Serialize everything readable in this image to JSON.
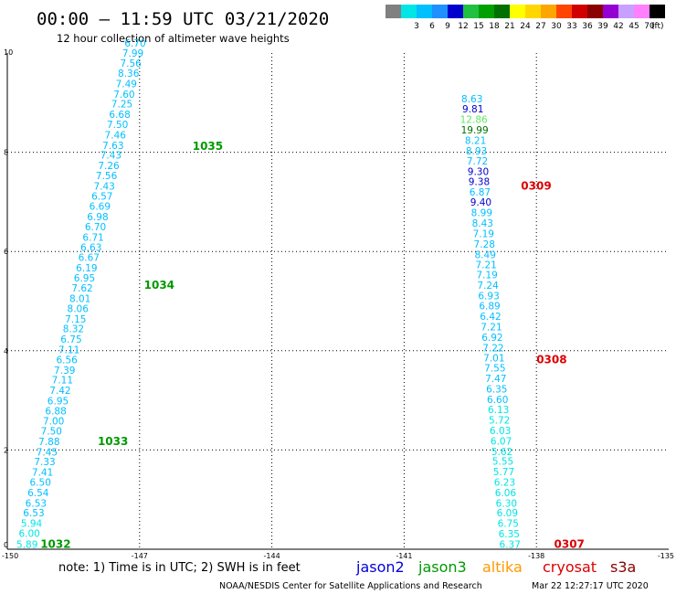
{
  "header": {
    "title": "00:00 – 11:59 UTC 03/21/2020",
    "subtitle": "12 hour collection of altimeter wave heights"
  },
  "colorbar": {
    "unit_label": "(ft)",
    "bins": [
      {
        "label": "",
        "color": "#808080"
      },
      {
        "label": "3",
        "color": "#00e5e5"
      },
      {
        "label": "6",
        "color": "#00bfff"
      },
      {
        "label": "9",
        "color": "#1e90ff"
      },
      {
        "label": "12",
        "color": "#0000cd"
      },
      {
        "label": "15",
        "color": "#20c040"
      },
      {
        "label": "18",
        "color": "#00a000"
      },
      {
        "label": "21",
        "color": "#007000"
      },
      {
        "label": "24",
        "color": "#ffff00"
      },
      {
        "label": "27",
        "color": "#ffd700"
      },
      {
        "label": "30",
        "color": "#ffa500"
      },
      {
        "label": "33",
        "color": "#ff4500"
      },
      {
        "label": "36",
        "color": "#d00000"
      },
      {
        "label": "39",
        "color": "#8b0000"
      },
      {
        "label": "42",
        "color": "#9400d3"
      },
      {
        "label": "45",
        "color": "#c8a0ff"
      },
      {
        "label": "70",
        "color": "#ff80ff"
      },
      {
        "label": "",
        "color": "#000000"
      }
    ]
  },
  "footer": {
    "note": "note:  1) Time is in UTC;  2) SWH is in feet",
    "credit": "NOAA/NESDIS Center for Satellite Applications and Research",
    "timestamp": "Mar 22 12:27:17 UTC 2020"
  },
  "legend": [
    {
      "name": "jason2",
      "color": "#0000dd"
    },
    {
      "name": "jason3",
      "color": "#009900"
    },
    {
      "name": "altika",
      "color": "#ff9900"
    },
    {
      "name": "cryosat",
      "color": "#dd0000"
    },
    {
      "name": "s3a",
      "color": "#880000"
    }
  ],
  "chart_data": {
    "type": "scatter",
    "xlim": [
      -150,
      -135
    ],
    "ylim": [
      0,
      10
    ],
    "xticks": [
      -150,
      -147,
      -144,
      -141,
      -138,
      -135
    ],
    "xtick_labels": [
      "-150",
      "-147",
      "-144",
      "-141",
      "-138",
      "-135"
    ],
    "yticks": [
      0,
      2,
      4,
      6,
      8,
      10
    ],
    "ytick_labels": [
      "0",
      "2",
      "4",
      "6",
      "8",
      "10"
    ],
    "grid": true,
    "series": [
      {
        "satellite": "jason3",
        "color": "#009900",
        "pass_labels": [
          {
            "text": "1032",
            "x": -149.25,
            "y": 0.03
          },
          {
            "text": "1033",
            "x": -147.95,
            "y": 2.1
          },
          {
            "text": "1034",
            "x": -146.9,
            "y": 5.25
          },
          {
            "text": "1035",
            "x": -145.8,
            "y": 8.05
          }
        ],
        "points": [
          {
            "x": -149.55,
            "y": 0.03,
            "v": "5.89",
            "c": "#00e5e5"
          },
          {
            "x": -149.5,
            "y": 0.25,
            "v": "6.00",
            "c": "#00e5e5"
          },
          {
            "x": -149.45,
            "y": 0.45,
            "v": "5.94",
            "c": "#00e5e5"
          },
          {
            "x": -149.4,
            "y": 0.66,
            "v": "6.53",
            "c": "#00bfff"
          },
          {
            "x": -149.35,
            "y": 0.86,
            "v": "6.53",
            "c": "#00bfff"
          },
          {
            "x": -149.3,
            "y": 1.07,
            "v": "6.54",
            "c": "#00bfff"
          },
          {
            "x": -149.25,
            "y": 1.28,
            "v": "6.50",
            "c": "#00bfff"
          },
          {
            "x": -149.2,
            "y": 1.48,
            "v": "7.41",
            "c": "#00bfff"
          },
          {
            "x": -149.15,
            "y": 1.69,
            "v": "7.33",
            "c": "#00bfff"
          },
          {
            "x": -149.1,
            "y": 1.89,
            "v": "7.45",
            "c": "#00bfff"
          },
          {
            "x": -149.05,
            "y": 2.1,
            "v": "7.88",
            "c": "#00bfff"
          },
          {
            "x": -149.0,
            "y": 2.31,
            "v": "7.50",
            "c": "#00bfff"
          },
          {
            "x": -148.95,
            "y": 2.51,
            "v": "7.00",
            "c": "#00bfff"
          },
          {
            "x": -148.9,
            "y": 2.72,
            "v": "6.88",
            "c": "#00bfff"
          },
          {
            "x": -148.85,
            "y": 2.92,
            "v": "6.95",
            "c": "#00bfff"
          },
          {
            "x": -148.8,
            "y": 3.13,
            "v": "7.42",
            "c": "#00bfff"
          },
          {
            "x": -148.75,
            "y": 3.34,
            "v": "7.11",
            "c": "#00bfff"
          },
          {
            "x": -148.7,
            "y": 3.54,
            "v": "7.39",
            "c": "#00bfff"
          },
          {
            "x": -148.65,
            "y": 3.75,
            "v": "6.56",
            "c": "#00bfff"
          },
          {
            "x": -148.6,
            "y": 3.95,
            "v": "7.11",
            "c": "#00bfff"
          },
          {
            "x": -148.55,
            "y": 4.16,
            "v": "6.75",
            "c": "#00bfff"
          },
          {
            "x": -148.5,
            "y": 4.37,
            "v": "8.32",
            "c": "#00bfff"
          },
          {
            "x": -148.45,
            "y": 4.57,
            "v": "7.15",
            "c": "#00bfff"
          },
          {
            "x": -148.4,
            "y": 4.78,
            "v": "8.06",
            "c": "#00bfff"
          },
          {
            "x": -148.35,
            "y": 4.98,
            "v": "8.01",
            "c": "#00bfff"
          },
          {
            "x": -148.3,
            "y": 5.19,
            "v": "7.62",
            "c": "#00bfff"
          },
          {
            "x": -148.25,
            "y": 5.4,
            "v": "6.95",
            "c": "#00bfff"
          },
          {
            "x": -148.2,
            "y": 5.6,
            "v": "6.19",
            "c": "#00bfff"
          },
          {
            "x": -148.15,
            "y": 5.81,
            "v": "6.67",
            "c": "#00bfff"
          },
          {
            "x": -148.1,
            "y": 6.01,
            "v": "6.63",
            "c": "#00bfff"
          },
          {
            "x": -148.05,
            "y": 6.22,
            "v": "6.71",
            "c": "#00bfff"
          },
          {
            "x": -148.0,
            "y": 6.43,
            "v": "6.70",
            "c": "#00bfff"
          },
          {
            "x": -147.95,
            "y": 6.63,
            "v": "6.98",
            "c": "#00bfff"
          },
          {
            "x": -147.9,
            "y": 6.84,
            "v": "6.69",
            "c": "#00bfff"
          },
          {
            "x": -147.85,
            "y": 7.04,
            "v": "6.57",
            "c": "#00bfff"
          },
          {
            "x": -147.8,
            "y": 7.25,
            "v": "7.43",
            "c": "#00bfff"
          },
          {
            "x": -147.75,
            "y": 7.46,
            "v": "7.56",
            "c": "#00bfff"
          },
          {
            "x": -147.7,
            "y": 7.66,
            "v": "7.26",
            "c": "#00bfff"
          },
          {
            "x": -147.65,
            "y": 7.87,
            "v": "7.43",
            "c": "#00bfff"
          },
          {
            "x": -147.6,
            "y": 8.07,
            "v": "7.63",
            "c": "#00bfff"
          },
          {
            "x": -147.55,
            "y": 8.28,
            "v": "7.46",
            "c": "#00bfff"
          },
          {
            "x": -147.5,
            "y": 8.49,
            "v": "7.50",
            "c": "#00bfff"
          },
          {
            "x": -147.45,
            "y": 8.69,
            "v": "6.68",
            "c": "#00bfff"
          },
          {
            "x": -147.4,
            "y": 8.9,
            "v": "7.25",
            "c": "#00bfff"
          },
          {
            "x": -147.35,
            "y": 9.1,
            "v": "7.60",
            "c": "#00bfff"
          },
          {
            "x": -147.3,
            "y": 9.31,
            "v": "7.49",
            "c": "#00bfff"
          },
          {
            "x": -147.25,
            "y": 9.52,
            "v": "8.36",
            "c": "#00bfff"
          },
          {
            "x": -147.2,
            "y": 9.72,
            "v": "7.56",
            "c": "#00bfff"
          },
          {
            "x": -147.15,
            "y": 9.93,
            "v": "7.99",
            "c": "#00bfff"
          },
          {
            "x": -147.1,
            "y": 10.13,
            "v": "6.70",
            "c": "#00bfff"
          }
        ]
      },
      {
        "satellite": "cryosat",
        "color": "#dd0000",
        "pass_labels": [
          {
            "text": "0307",
            "x": -137.6,
            "y": 0.03
          },
          {
            "text": "0308",
            "x": -138.0,
            "y": 3.75
          },
          {
            "text": "0309",
            "x": -138.35,
            "y": 7.25
          }
        ],
        "points": [
          {
            "x": -138.6,
            "y": 0.03,
            "v": "6.37",
            "c": "#00e5e5"
          },
          {
            "x": -138.62,
            "y": 0.24,
            "v": "6.35",
            "c": "#00e5e5"
          },
          {
            "x": -138.64,
            "y": 0.45,
            "v": "6.75",
            "c": "#00e5e5"
          },
          {
            "x": -138.66,
            "y": 0.66,
            "v": "6.09",
            "c": "#00e5e5"
          },
          {
            "x": -138.68,
            "y": 0.86,
            "v": "6.30",
            "c": "#00e5e5"
          },
          {
            "x": -138.7,
            "y": 1.07,
            "v": "6.06",
            "c": "#00e5e5"
          },
          {
            "x": -138.72,
            "y": 1.28,
            "v": "6.23",
            "c": "#00e5e5"
          },
          {
            "x": -138.74,
            "y": 1.49,
            "v": "5.77",
            "c": "#00e5e5"
          },
          {
            "x": -138.76,
            "y": 1.7,
            "v": "5.55",
            "c": "#00e5e5"
          },
          {
            "x": -138.78,
            "y": 1.9,
            "v": "5.62",
            "c": "#00e5e5"
          },
          {
            "x": -138.8,
            "y": 2.11,
            "v": "6.07",
            "c": "#00e5e5"
          },
          {
            "x": -138.82,
            "y": 2.32,
            "v": "6.03",
            "c": "#00e5e5"
          },
          {
            "x": -138.84,
            "y": 2.53,
            "v": "5.72",
            "c": "#00e5e5"
          },
          {
            "x": -138.86,
            "y": 2.74,
            "v": "6.13",
            "c": "#00e5e5"
          },
          {
            "x": -138.88,
            "y": 2.95,
            "v": "6.60",
            "c": "#00bfff"
          },
          {
            "x": -138.9,
            "y": 3.16,
            "v": "6.35",
            "c": "#00bfff"
          },
          {
            "x": -138.92,
            "y": 3.37,
            "v": "7.47",
            "c": "#00bfff"
          },
          {
            "x": -138.94,
            "y": 3.58,
            "v": "7.55",
            "c": "#00bfff"
          },
          {
            "x": -138.96,
            "y": 3.78,
            "v": "7.01",
            "c": "#00bfff"
          },
          {
            "x": -138.98,
            "y": 3.99,
            "v": "7.22",
            "c": "#00bfff"
          },
          {
            "x": -139.0,
            "y": 4.2,
            "v": "6.92",
            "c": "#00bfff"
          },
          {
            "x": -139.02,
            "y": 4.41,
            "v": "7.21",
            "c": "#00bfff"
          },
          {
            "x": -139.04,
            "y": 4.62,
            "v": "6.42",
            "c": "#00bfff"
          },
          {
            "x": -139.06,
            "y": 4.83,
            "v": "6.89",
            "c": "#00bfff"
          },
          {
            "x": -139.08,
            "y": 5.04,
            "v": "6.93",
            "c": "#00bfff"
          },
          {
            "x": -139.1,
            "y": 5.25,
            "v": "7.24",
            "c": "#00bfff"
          },
          {
            "x": -139.12,
            "y": 5.46,
            "v": "7.19",
            "c": "#00bfff"
          },
          {
            "x": -139.14,
            "y": 5.66,
            "v": "7.21",
            "c": "#00bfff"
          },
          {
            "x": -139.16,
            "y": 5.87,
            "v": "8.49",
            "c": "#00bfff"
          },
          {
            "x": -139.18,
            "y": 6.08,
            "v": "7.28",
            "c": "#00bfff"
          },
          {
            "x": -139.2,
            "y": 6.29,
            "v": "7.19",
            "c": "#00bfff"
          },
          {
            "x": -139.22,
            "y": 6.5,
            "v": "8.43",
            "c": "#00bfff"
          },
          {
            "x": -139.24,
            "y": 6.71,
            "v": "8.99",
            "c": "#00bfff"
          },
          {
            "x": -139.26,
            "y": 6.92,
            "v": "9.40",
            "c": "#0000cd"
          },
          {
            "x": -139.28,
            "y": 7.13,
            "v": "6.87",
            "c": "#00bfff"
          },
          {
            "x": -139.3,
            "y": 7.34,
            "v": "9.38",
            "c": "#0000cd"
          },
          {
            "x": -139.32,
            "y": 7.54,
            "v": "9.30",
            "c": "#0000cd"
          },
          {
            "x": -139.34,
            "y": 7.75,
            "v": "7.72",
            "c": "#00bfff"
          },
          {
            "x": -139.36,
            "y": 7.96,
            "v": "8.93",
            "c": "#00bfff"
          },
          {
            "x": -139.38,
            "y": 8.17,
            "v": "8.21",
            "c": "#00bfff"
          },
          {
            "x": -139.4,
            "y": 8.38,
            "v": "19.99",
            "c": "#007000"
          },
          {
            "x": -139.42,
            "y": 8.59,
            "v": "12.86",
            "c": "#60e860"
          },
          {
            "x": -139.44,
            "y": 8.8,
            "v": "9.81",
            "c": "#0000cd"
          },
          {
            "x": -139.46,
            "y": 9.01,
            "v": "8.63",
            "c": "#00bfff"
          }
        ]
      }
    ]
  }
}
